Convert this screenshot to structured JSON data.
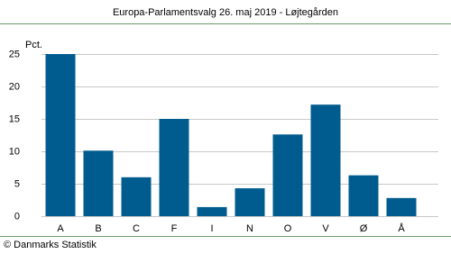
{
  "chart_data": {
    "type": "bar",
    "title": "Europa-Parlamentsvalg 26. maj 2019 - Løjtegården",
    "y_label": "Pct.",
    "categories": [
      "A",
      "B",
      "C",
      "F",
      "I",
      "N",
      "O",
      "V",
      "Ø",
      "Å"
    ],
    "values": [
      25.0,
      10.1,
      6.0,
      15.0,
      1.4,
      4.3,
      12.6,
      17.2,
      6.3,
      2.8
    ],
    "color": "#005b8e",
    "ylim": [
      0,
      25
    ],
    "yticks": [
      0,
      5,
      10,
      15,
      20,
      25
    ],
    "grid": true,
    "source": "© Danmarks Statistik"
  }
}
